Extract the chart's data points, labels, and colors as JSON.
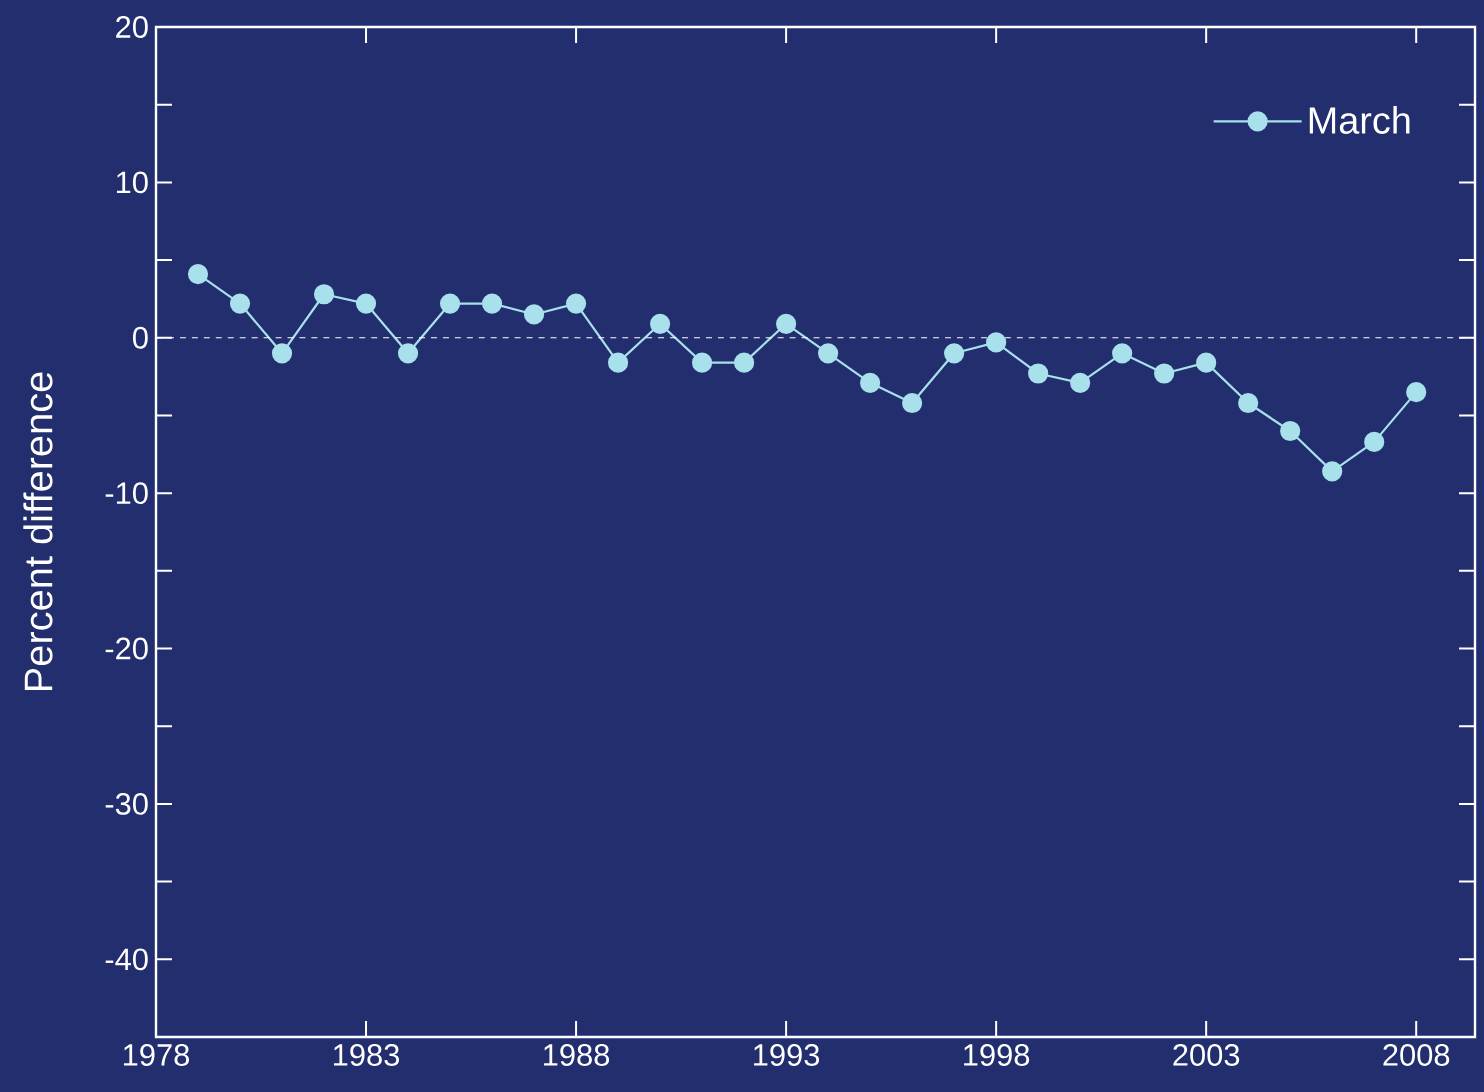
{
  "chart_data": {
    "type": "line",
    "ylabel": "Percent difference",
    "x": [
      1979,
      1980,
      1981,
      1982,
      1983,
      1984,
      1985,
      1986,
      1987,
      1988,
      1989,
      1990,
      1991,
      1992,
      1993,
      1994,
      1995,
      1996,
      1997,
      1998,
      1999,
      2000,
      2001,
      2002,
      2003,
      2004,
      2005,
      2006,
      2007,
      2008
    ],
    "series": [
      {
        "name": "March",
        "color": "#a8e0ec",
        "values": [
          4.1,
          2.2,
          -1.0,
          2.8,
          2.2,
          -1.0,
          2.2,
          2.2,
          1.5,
          2.2,
          -1.6,
          0.9,
          -1.6,
          -1.6,
          0.9,
          -1.0,
          -2.9,
          -4.2,
          -1.0,
          -0.3,
          -2.3,
          -2.9,
          -1.0,
          -2.3,
          -1.6,
          -4.2,
          -6.0,
          -8.6,
          -6.7,
          -3.5
        ]
      }
    ],
    "xlim": [
      1978,
      2009.4
    ],
    "ylim": [
      -45,
      20
    ],
    "xticks": [
      1978,
      1983,
      1988,
      1993,
      1998,
      2003,
      2008
    ],
    "yticks": [
      -40,
      {
        "value": -35,
        "label": null
      },
      -30,
      {
        "value": -25,
        "label": null
      },
      -20,
      {
        "value": -15,
        "label": null
      },
      -10,
      {
        "value": -5,
        "label": null
      },
      0,
      {
        "value": 5,
        "label": null
      },
      10,
      {
        "value": 15,
        "label": null
      },
      20
    ],
    "ref_lines": [
      {
        "axis": "y",
        "value": 0,
        "color": "#ffffff",
        "line_style": "dashed"
      }
    ],
    "marker": "circle",
    "line_style": "solid",
    "legend": "top right",
    "grid": false
  }
}
